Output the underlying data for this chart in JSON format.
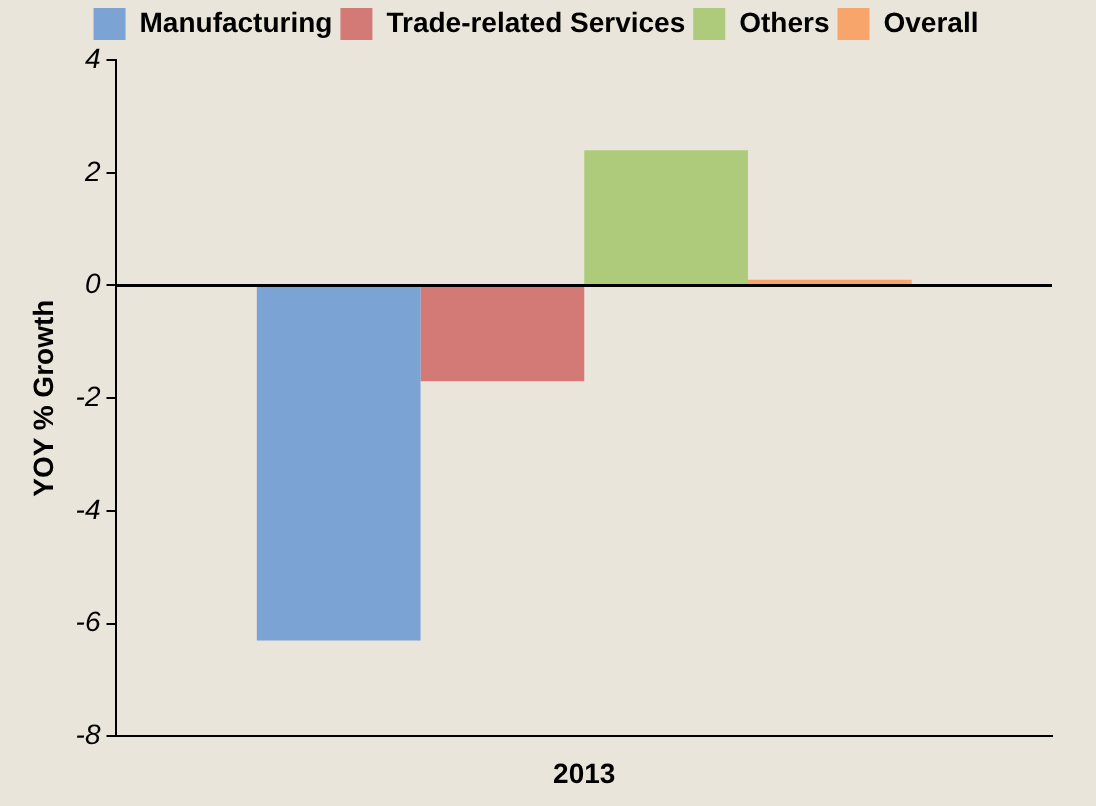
{
  "chart_data": {
    "type": "bar",
    "ylabel": "YOY % Growth",
    "categories": [
      "2013"
    ],
    "series": [
      {
        "name": "Manufacturing",
        "color": "#7ba3d3",
        "values": [
          -6.3
        ]
      },
      {
        "name": "Trade-related Services",
        "color": "#d47a76",
        "values": [
          -1.7
        ]
      },
      {
        "name": "Others",
        "color": "#aecb7b",
        "values": [
          2.4
        ]
      },
      {
        "name": "Overall",
        "color": "#f7a56a",
        "values": [
          0.1
        ]
      }
    ],
    "ylim": [
      -8,
      4
    ],
    "yticks": [
      -8,
      -6,
      -4,
      -2,
      0,
      2,
      4
    ],
    "legend": "top",
    "ref_lines": [
      {
        "axis": "y",
        "value": 0,
        "color": "#000000"
      }
    ]
  }
}
